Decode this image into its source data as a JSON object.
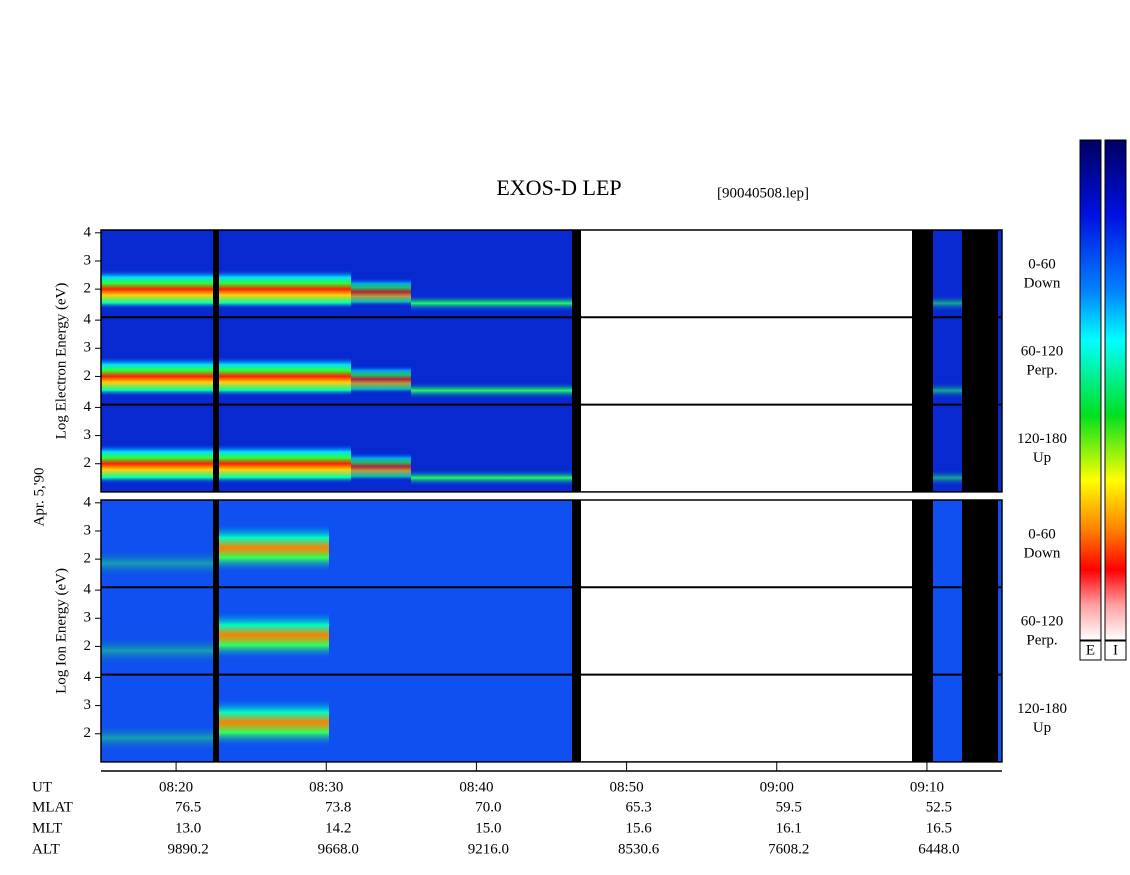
{
  "chart_data": {
    "type": "spectrogram",
    "title": "EXOS-D LEP",
    "file": "[90040508.lep]",
    "date": "Apr. 5,'90",
    "xlim": [
      "08:15",
      "09:15"
    ],
    "xticks": [
      "08:20",
      "08:30",
      "08:40",
      "08:50",
      "09:00",
      "09:10"
    ],
    "x_row_label": "UT",
    "orbit": [
      {
        "label": "MLAT",
        "values": [
          "76.5",
          "73.8",
          "70.0",
          "65.3",
          "59.5",
          "52.5"
        ]
      },
      {
        "label": "MLT",
        "values": [
          "13.0",
          "14.2",
          "15.0",
          "15.6",
          "16.1",
          "16.5"
        ]
      },
      {
        "label": "ALT",
        "values": [
          "9890.2",
          "9668.0",
          "9216.0",
          "8530.6",
          "7608.2",
          "6448.0"
        ]
      }
    ],
    "pitch_angles": [
      {
        "range": "0-60",
        "direction": "Down"
      },
      {
        "range": "60-120",
        "direction": "Perp."
      },
      {
        "range": "120-180",
        "direction": "Up"
      }
    ],
    "panels": [
      {
        "ylabel": "Log  Electron  Energy (eV)",
        "ylim": [
          1,
          4.1
        ],
        "yticks": [
          2,
          3,
          4
        ]
      },
      {
        "ylabel": "Log  Ion  Energy (eV)",
        "ylim": [
          1,
          4.1
        ],
        "yticks": [
          2,
          3,
          4
        ]
      }
    ],
    "colorbars": [
      "E",
      "I"
    ]
  }
}
